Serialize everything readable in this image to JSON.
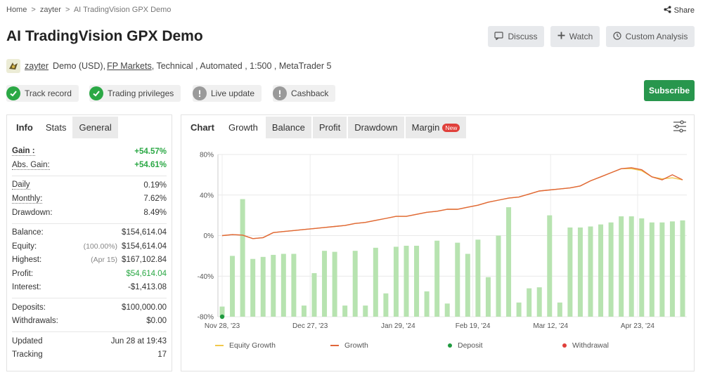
{
  "breadcrumb": {
    "home": "Home",
    "user": "zayter",
    "current": "AI TradingVision GPX Demo",
    "sep": ">"
  },
  "share_label": "Share",
  "title": "AI TradingVision GPX Demo",
  "buttons": {
    "discuss": "Discuss",
    "watch": "Watch",
    "custom_analysis": "Custom Analysis",
    "subscribe": "Subscribe"
  },
  "meta": {
    "username": "zayter",
    "account": "Demo (USD),",
    "broker": "FP Markets",
    "rest": ", Technical , Automated , 1:500 , MetaTrader 5"
  },
  "badges": {
    "track_record": "Track record",
    "trading_privileges": "Trading privileges",
    "live_update": "Live update",
    "cashback": "Cashback"
  },
  "left_tabs": {
    "info": "Info",
    "stats": "Stats",
    "general": "General"
  },
  "stats": {
    "gain_label": "Gain :",
    "gain_value": "+54.57%",
    "abs_gain_label": "Abs. Gain:",
    "abs_gain_value": "+54.61%",
    "daily_label": "Daily",
    "daily_value": "0.19%",
    "monthly_label": "Monthly:",
    "monthly_value": "7.62%",
    "drawdown_label": "Drawdown:",
    "drawdown_value": "8.49%",
    "balance_label": "Balance:",
    "balance_value": "$154,614.04",
    "equity_label": "Equity:",
    "equity_pre": "(100.00%)",
    "equity_value": "$154,614.04",
    "highest_label": "Highest:",
    "highest_pre": "(Apr 15)",
    "highest_value": "$167,102.84",
    "profit_label": "Profit:",
    "profit_value": "$54,614.04",
    "interest_label": "Interest:",
    "interest_value": "-$1,413.08",
    "deposits_label": "Deposits:",
    "deposits_value": "$100,000.00",
    "withdrawals_label": "Withdrawals:",
    "withdrawals_value": "$0.00",
    "updated_label": "Updated",
    "updated_value": "Jun 28 at 19:43",
    "tracking_label": "Tracking",
    "tracking_value": "17"
  },
  "chart_tabs": {
    "chart": "Chart",
    "growth": "Growth",
    "balance": "Balance",
    "profit": "Profit",
    "drawdown": "Drawdown",
    "margin": "Margin",
    "new_tag": "New"
  },
  "legend": {
    "equity_growth": "Equity Growth",
    "growth": "Growth",
    "deposit": "Deposit",
    "withdrawal": "Withdrawal"
  },
  "colors": {
    "accent_green": "#2ba845",
    "subscribe": "#28964d",
    "growth_line": "#e0663a",
    "equity_line": "#f2c94c",
    "bars": "#b7e3b0",
    "deposit": "#1f9a3f",
    "withdrawal": "#e0403b"
  },
  "chart_data": {
    "type": "bar+line",
    "y_ticks": [
      "80%",
      "40%",
      "0%",
      "-40%",
      "-80%"
    ],
    "ylim": [
      -80,
      80
    ],
    "x_ticks": [
      "Nov 28, '23",
      "Dec 27, '23",
      "Jan 29, '24",
      "Feb 19, '24",
      "Mar 12, '24",
      "Apr 23, '24"
    ],
    "bars_daily_pct": [
      -70,
      -20,
      36,
      -23,
      -21,
      -19,
      -18,
      -18,
      -69,
      -37,
      -15,
      -16,
      -69,
      -15,
      -69,
      -12,
      -57,
      -11,
      -10,
      -10,
      -55,
      -5,
      -67,
      -7,
      -18,
      -4,
      -41,
      0,
      28,
      -66,
      -52,
      -51,
      20,
      -66,
      8,
      8,
      9,
      11,
      13,
      19,
      19,
      17,
      13,
      13,
      14,
      15
    ],
    "growth_pct": [
      0,
      1,
      0.5,
      -3,
      -2,
      3,
      4,
      5,
      6,
      7,
      8,
      9,
      10,
      12,
      13,
      15,
      17,
      19,
      19,
      21,
      23,
      24,
      26,
      26,
      28,
      30,
      33,
      35,
      37,
      38,
      41,
      44,
      45,
      46,
      47,
      49,
      54,
      58,
      62,
      66,
      67,
      65,
      58,
      55,
      60,
      55
    ],
    "equity_growth_pct": [
      0,
      1,
      0.5,
      -3,
      -2,
      3,
      4,
      5,
      6,
      7,
      8,
      9,
      10,
      12,
      13,
      15,
      17,
      19,
      19,
      21,
      23,
      24,
      26,
      26,
      28,
      30,
      33,
      35,
      37,
      38,
      41,
      44,
      45,
      46,
      47,
      49,
      54,
      58,
      62,
      66,
      66,
      64,
      58,
      56,
      57,
      55
    ],
    "deposit_index": 0,
    "deposit_value_pct": -80
  }
}
